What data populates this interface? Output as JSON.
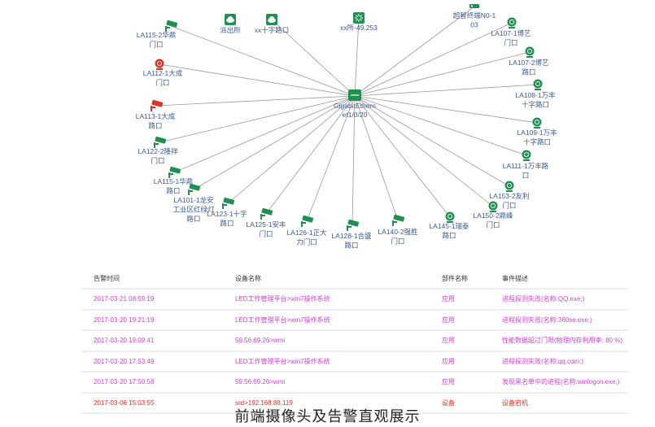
{
  "colors": {
    "ok": "#1e9150",
    "alarm": "#e0302a",
    "label": "#3b5998",
    "alarm_text": "#d43fd4",
    "critical_text": "#ee2a24"
  },
  "topology": {
    "center": {
      "label": [
        "GigabitEthern",
        "et1/0/20"
      ],
      "icon": "switch-icon"
    },
    "nodes": [
      {
        "label": [
          "LA115-2华鼎",
          "门口"
        ],
        "icon": "camera",
        "status": "ok",
        "link": true
      },
      {
        "label": [
          "派出所"
        ],
        "icon": "cloud",
        "status": "ok",
        "link": false
      },
      {
        "label": [
          "xx十字路口"
        ],
        "icon": "cloud",
        "status": "ok",
        "link": true
      },
      {
        "label": [
          "xx所-49.253"
        ],
        "icon": "hub",
        "status": "ok",
        "link": true
      },
      {
        "label": [
          "超智终端N0-1",
          "03"
        ],
        "icon": "terminal",
        "status": "ok",
        "link": true
      },
      {
        "label": [
          "LA107-1博艺",
          "门口"
        ],
        "icon": "webcam",
        "status": "ok",
        "link": true
      },
      {
        "label": [
          "LA107-2博艺",
          "路口"
        ],
        "icon": "webcam",
        "status": "ok",
        "link": true
      },
      {
        "label": [
          "LA108-1万丰",
          "十字路口"
        ],
        "icon": "webcam",
        "status": "ok",
        "link": true
      },
      {
        "label": [
          "LA109-1万丰",
          "十字路口"
        ],
        "icon": "webcam",
        "status": "ok",
        "link": true
      },
      {
        "label": [
          "LA111-1万丰路",
          "口"
        ],
        "icon": "webcam",
        "status": "ok",
        "link": true
      },
      {
        "label": [
          "LA153-2友利",
          "门口"
        ],
        "icon": "webcam",
        "status": "ok",
        "link": true
      },
      {
        "label": [
          "LA150-2鼎峰",
          "门口"
        ],
        "icon": "webcam",
        "status": "ok",
        "link": true
      },
      {
        "label": [
          "LA145-1瑞泰",
          "路口"
        ],
        "icon": "webcam",
        "status": "ok",
        "link": true
      },
      {
        "label": [
          "LA140-2强胜",
          "门口"
        ],
        "icon": "camera",
        "status": "ok",
        "link": true
      },
      {
        "label": [
          "LA128-1合盛",
          "路口"
        ],
        "icon": "camera",
        "status": "ok",
        "link": true
      },
      {
        "label": [
          "LA126-1正大",
          "力门口"
        ],
        "icon": "camera",
        "status": "ok",
        "link": true
      },
      {
        "label": [
          "LA125-1安丰",
          "门口"
        ],
        "icon": "camera",
        "status": "ok",
        "link": true
      },
      {
        "label": [
          "LA123-1十字",
          "路口"
        ],
        "icon": "camera",
        "status": "ok",
        "link": true
      },
      {
        "label": [
          "LA101-1龙安",
          "工业区红绿灯",
          "路口"
        ],
        "icon": "camera",
        "status": "ok",
        "link": true
      },
      {
        "label": [
          "LA115-1华鼎",
          "路口"
        ],
        "icon": "camera",
        "status": "ok",
        "link": true
      },
      {
        "label": [
          "LA122-2隆祥",
          "门口"
        ],
        "icon": "camera",
        "status": "ok",
        "link": true
      },
      {
        "label": [
          "LA113-1大成",
          "路口"
        ],
        "icon": "camera",
        "status": "alarm",
        "link": true
      },
      {
        "label": [
          "LA112-1大成",
          "门口"
        ],
        "icon": "webcam",
        "status": "alarm",
        "link": true
      }
    ]
  },
  "alarms": {
    "headers": [
      "告警时间",
      "设备名称",
      "部件名称",
      "事件描述"
    ],
    "rows": [
      {
        "time": "2017-03-21 08:59:19",
        "device": "LED工作管理平台>win7操作系统",
        "part": "应用",
        "event": "进程探测失败(名称:QQ.exe;)",
        "severity": "alarm"
      },
      {
        "time": "2017-03-20 19:21:19",
        "device": "LED工作管理平台>win7操作系统",
        "part": "应用",
        "event": "进程探测失败(名称:360se.exe;)",
        "severity": "alarm"
      },
      {
        "time": "2017-03-20 19:09:41",
        "device": "59.56.69.26>wmi",
        "part": "应用",
        "event": "性能数据超过门限(物理内存利用率: 80 %)",
        "severity": "alarm"
      },
      {
        "time": "2017-03-20 17:53:49",
        "device": "LED工作管理平台>win7操作系统",
        "part": "应用",
        "event": "进程探测失败(名称:qq.com;)",
        "severity": "alarm"
      },
      {
        "time": "2017-03-20 17:50:58",
        "device": "59.56.69.26>wmi",
        "part": "应用",
        "event": "发现黑名单中的进程(名称:winlogon.exe;)",
        "severity": "alarm"
      },
      {
        "time": "2017-03-06 15:03:55",
        "device": "srd>192.168.88.119",
        "part": "设备",
        "event": "设备宕机",
        "severity": "critical"
      }
    ]
  },
  "caption": "前端摄像头及告警直观展示"
}
